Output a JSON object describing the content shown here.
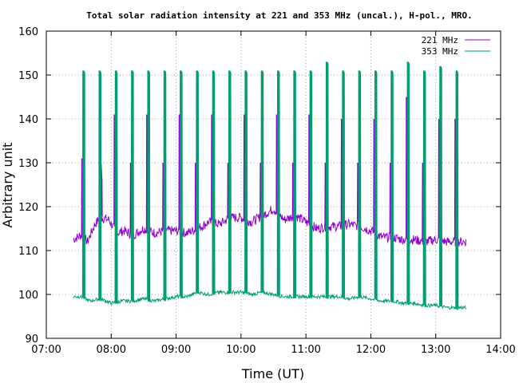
{
  "chart_data": {
    "type": "line",
    "title": "Total solar radiation intensity at 221 and 353 MHz (uncal.), H-pol., MRO.",
    "xlabel": "Time (UT)",
    "ylabel": "Arbitrary unit",
    "xlim": [
      "07:00",
      "14:00"
    ],
    "ylim": [
      90,
      160
    ],
    "x_ticks": [
      "07:00",
      "08:00",
      "09:00",
      "10:00",
      "11:00",
      "12:00",
      "13:00",
      "14:00"
    ],
    "y_ticks": [
      "90",
      "100",
      "110",
      "120",
      "130",
      "140",
      "150",
      "160"
    ],
    "grid": true,
    "legend_position": "top-right",
    "series": [
      {
        "name": "221 MHz",
        "color": "#9400d3",
        "baseline": [
          [
            "07:25",
            112.5
          ],
          [
            "07:32",
            113.5
          ],
          [
            "07:38",
            112
          ],
          [
            "07:45",
            116
          ],
          [
            "07:50",
            117.5
          ],
          [
            "07:58",
            117
          ],
          [
            "08:05",
            114
          ],
          [
            "08:12",
            114.5
          ],
          [
            "08:20",
            113.5
          ],
          [
            "08:30",
            115
          ],
          [
            "08:40",
            114
          ],
          [
            "08:50",
            114.5
          ],
          [
            "09:00",
            114.5
          ],
          [
            "09:10",
            114
          ],
          [
            "09:20",
            115
          ],
          [
            "09:30",
            116.5
          ],
          [
            "09:40",
            116
          ],
          [
            "09:50",
            117.5
          ],
          [
            "10:00",
            117.5
          ],
          [
            "10:10",
            116.5
          ],
          [
            "10:20",
            118
          ],
          [
            "10:30",
            119.5
          ],
          [
            "10:40",
            117
          ],
          [
            "10:50",
            118
          ],
          [
            "11:00",
            116.5
          ],
          [
            "11:10",
            115
          ],
          [
            "11:20",
            115.5
          ],
          [
            "11:30",
            115.5
          ],
          [
            "11:40",
            116
          ],
          [
            "11:50",
            115.5
          ],
          [
            "12:00",
            114.5
          ],
          [
            "12:10",
            113
          ],
          [
            "12:20",
            113
          ],
          [
            "12:30",
            112.5
          ],
          [
            "12:40",
            112.5
          ],
          [
            "12:50",
            112
          ],
          [
            "13:00",
            112.5
          ],
          [
            "13:10",
            112
          ],
          [
            "13:20",
            112
          ],
          [
            "13:28",
            112
          ]
        ],
        "peaks": [
          [
            "07:33",
            131
          ],
          [
            "07:50",
            130
          ],
          [
            "08:03",
            141
          ],
          [
            "08:18",
            130
          ],
          [
            "08:33",
            141
          ],
          [
            "08:48",
            130
          ],
          [
            "09:03",
            141
          ],
          [
            "09:18",
            130
          ],
          [
            "09:33",
            141
          ],
          [
            "09:48",
            130
          ],
          [
            "10:03",
            141
          ],
          [
            "10:18",
            130
          ],
          [
            "10:33",
            141
          ],
          [
            "10:48",
            130
          ],
          [
            "11:03",
            141
          ],
          [
            "11:18",
            130
          ],
          [
            "11:33",
            140
          ],
          [
            "11:48",
            130
          ],
          [
            "12:03",
            140
          ],
          [
            "12:18",
            130
          ],
          [
            "12:33",
            145
          ],
          [
            "12:48",
            130
          ],
          [
            "13:03",
            140
          ],
          [
            "13:18",
            140
          ]
        ]
      },
      {
        "name": "353 MHz",
        "color": "#009e73",
        "baseline": [
          [
            "07:25",
            99.5
          ],
          [
            "07:32",
            99.5
          ],
          [
            "07:40",
            98.5
          ],
          [
            "07:50",
            99
          ],
          [
            "08:00",
            98
          ],
          [
            "08:10",
            98.5
          ],
          [
            "08:20",
            98.5
          ],
          [
            "08:30",
            99
          ],
          [
            "08:40",
            98.5
          ],
          [
            "08:50",
            99
          ],
          [
            "09:00",
            99.5
          ],
          [
            "09:10",
            99.5
          ],
          [
            "09:20",
            100.5
          ],
          [
            "09:30",
            100
          ],
          [
            "09:40",
            100.5
          ],
          [
            "09:50",
            100.5
          ],
          [
            "10:00",
            100.5
          ],
          [
            "10:10",
            100
          ],
          [
            "10:20",
            100.5
          ],
          [
            "10:30",
            100
          ],
          [
            "10:40",
            99.5
          ],
          [
            "10:50",
            99.5
          ],
          [
            "11:00",
            99.5
          ],
          [
            "11:10",
            99.5
          ],
          [
            "11:20",
            99.5
          ],
          [
            "11:30",
            99.5
          ],
          [
            "11:40",
            99
          ],
          [
            "11:50",
            99.5
          ],
          [
            "12:00",
            99
          ],
          [
            "12:10",
            98.5
          ],
          [
            "12:20",
            98.5
          ],
          [
            "12:30",
            98
          ],
          [
            "12:40",
            98
          ],
          [
            "12:50",
            97.5
          ],
          [
            "13:00",
            97.5
          ],
          [
            "13:10",
            97
          ],
          [
            "13:20",
            97
          ],
          [
            "13:28",
            97
          ]
        ],
        "peaks": [
          [
            "07:34",
            151
          ],
          [
            "07:49",
            151
          ],
          [
            "08:04",
            151
          ],
          [
            "08:19",
            151
          ],
          [
            "08:34",
            151
          ],
          [
            "08:49",
            151
          ],
          [
            "09:04",
            151
          ],
          [
            "09:19",
            151
          ],
          [
            "09:34",
            151
          ],
          [
            "09:49",
            151
          ],
          [
            "10:04",
            151
          ],
          [
            "10:19",
            151
          ],
          [
            "10:34",
            151
          ],
          [
            "10:49",
            151
          ],
          [
            "11:04",
            151
          ],
          [
            "11:19",
            153
          ],
          [
            "11:34",
            151
          ],
          [
            "11:49",
            151
          ],
          [
            "12:04",
            151
          ],
          [
            "12:19",
            151
          ],
          [
            "12:34",
            153
          ],
          [
            "12:49",
            151
          ],
          [
            "13:04",
            152
          ],
          [
            "13:19",
            151
          ]
        ]
      }
    ]
  }
}
